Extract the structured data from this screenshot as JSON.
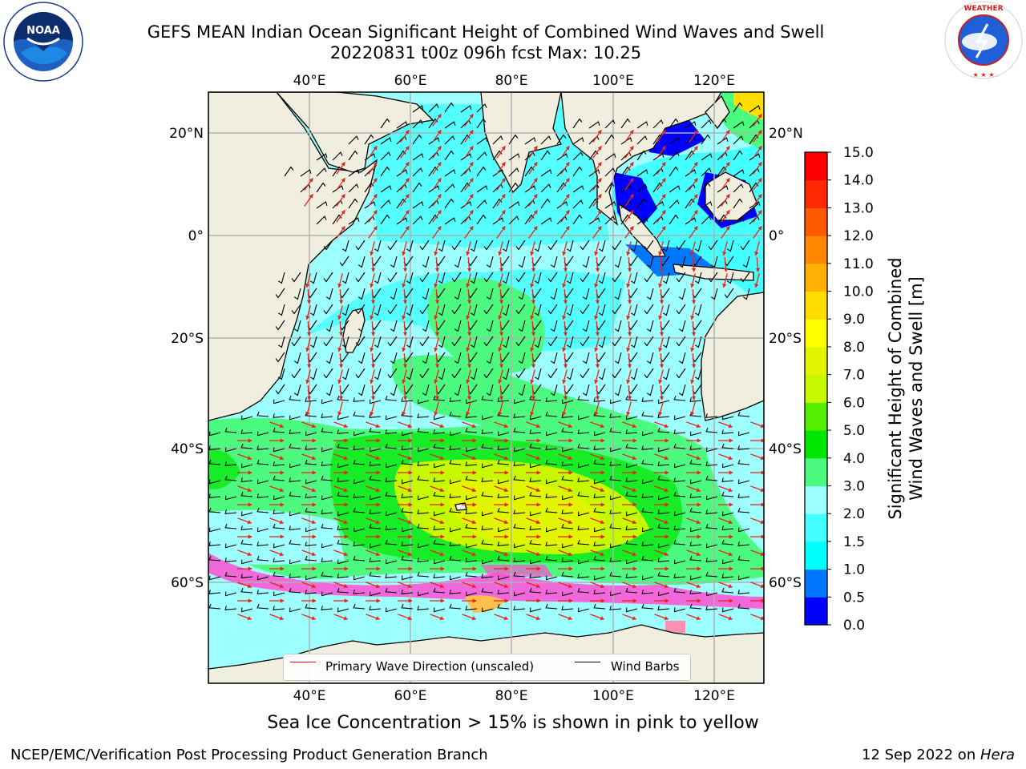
{
  "header": {
    "title_line1": "GEFS MEAN Indian Ocean Significant Height of Combined Wind Waves and Swell",
    "title_line2": "20220831 t00z 096h fcst   Max: 10.25"
  },
  "logos": {
    "left": {
      "name": "NOAA",
      "ring_text": "NATIONAL OCEANIC AND ATMOSPHERIC ADMINISTRATION · U.S. DEPARTMENT OF COMMERCE"
    },
    "right": {
      "name": "NATIONAL WEATHER SERVICE"
    }
  },
  "map": {
    "lon_labels": [
      "40°E",
      "60°E",
      "80°E",
      "100°E",
      "120°E"
    ],
    "lat_labels": [
      "20°N",
      "0°",
      "20°S",
      "40°S",
      "60°S"
    ],
    "lon_values": [
      40,
      60,
      80,
      100,
      120
    ],
    "lat_values": [
      20,
      0,
      -20,
      -40,
      -60
    ],
    "extent": {
      "lon_min": 20,
      "lon_max": 130,
      "lat_min": -78,
      "lat_max": 28
    },
    "grid": true,
    "colors": {
      "land": "#efeedf",
      "coast": "#000000",
      "wave_arrow": "#e8231c",
      "wind_barb": "#000000",
      "sea_ice": "#ff4dd2"
    }
  },
  "legend": {
    "items": [
      {
        "label": "Primary Wave Direction (unscaled)",
        "color": "#ff0000"
      },
      {
        "label": "Wind Barbs",
        "color": "#000000"
      }
    ]
  },
  "colorbar": {
    "label_line1": "Significant Height of Combined",
    "label_line2": "Wind Waves and Swell [m]",
    "ticks": [
      "0.0",
      "0.5",
      "1.0",
      "1.5",
      "2.0",
      "3.0",
      "4.0",
      "5.0",
      "6.0",
      "7.0",
      "8.0",
      "9.0",
      "10.0",
      "11.0",
      "12.0",
      "13.0",
      "14.0",
      "15.0"
    ],
    "colors": [
      "#0000ff",
      "#0077ff",
      "#00ffff",
      "#44ffff",
      "#9dfffe",
      "#4dfa80",
      "#00e600",
      "#55ee00",
      "#c6f800",
      "#e1f400",
      "#ffff00",
      "#ffdd00",
      "#ffb000",
      "#ff8800",
      "#ff5a00",
      "#ff2800",
      "#ff0000"
    ]
  },
  "captions": {
    "sea_ice": "Sea Ice Concentration > 15% is shown in pink to yellow",
    "footer_left": "NCEP/EMC/Verification Post Processing Product Generation Branch",
    "footer_right_date": "12 Sep 2022 on ",
    "footer_right_host": "Hera"
  }
}
